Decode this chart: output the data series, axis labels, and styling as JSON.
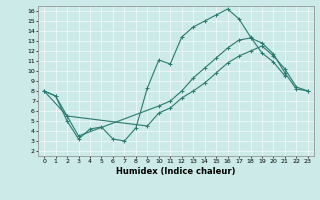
{
  "xlabel": "Humidex (Indice chaleur)",
  "bg_color": "#cceae7",
  "line_color": "#2a7a6f",
  "xlim": [
    -0.5,
    23.5
  ],
  "ylim": [
    1.5,
    16.5
  ],
  "xticks": [
    0,
    1,
    2,
    3,
    4,
    5,
    6,
    7,
    8,
    9,
    10,
    11,
    12,
    13,
    14,
    15,
    16,
    17,
    18,
    19,
    20,
    21,
    22,
    23
  ],
  "yticks": [
    2,
    3,
    4,
    5,
    6,
    7,
    8,
    9,
    10,
    11,
    12,
    13,
    14,
    15,
    16
  ],
  "s1_x": [
    0,
    1,
    2,
    3,
    4,
    5,
    6,
    7,
    8,
    9,
    10,
    11,
    12,
    13,
    14,
    15,
    16,
    17,
    18,
    19,
    20,
    21
  ],
  "s1_y": [
    8.0,
    7.5,
    5.0,
    3.2,
    4.2,
    4.4,
    3.2,
    3.0,
    4.3,
    8.3,
    11.1,
    10.7,
    13.4,
    14.4,
    15.0,
    15.6,
    16.2,
    15.2,
    13.4,
    11.8,
    10.9,
    9.5
  ],
  "s2_x": [
    0,
    2,
    3,
    10,
    11,
    12,
    13,
    14,
    15,
    16,
    17,
    18,
    19,
    20,
    21,
    22,
    23
  ],
  "s2_y": [
    8.0,
    5.5,
    3.5,
    6.5,
    7.0,
    8.0,
    9.3,
    10.3,
    11.3,
    12.3,
    13.1,
    13.3,
    12.8,
    11.7,
    9.8,
    8.2,
    8.0
  ],
  "s3_x": [
    0,
    1,
    2,
    9,
    10,
    11,
    12,
    13,
    14,
    15,
    16,
    17,
    18,
    19,
    20,
    21,
    22,
    23
  ],
  "s3_y": [
    8.0,
    7.5,
    5.5,
    4.5,
    5.8,
    6.3,
    7.3,
    8.0,
    8.8,
    9.8,
    10.8,
    11.5,
    12.0,
    12.5,
    11.5,
    10.2,
    8.4,
    8.0
  ]
}
